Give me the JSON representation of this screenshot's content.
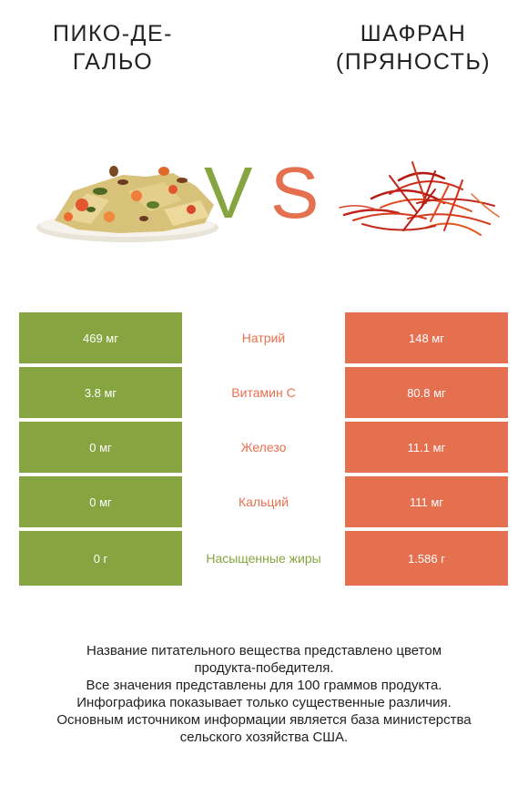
{
  "left_food": {
    "title_line1": "Пико-де-",
    "title_line2": "гальо"
  },
  "right_food": {
    "title_line1": "Шафран",
    "title_line2": "(пряность)"
  },
  "vs": {
    "v": "V",
    "s": "S"
  },
  "colors": {
    "left": "#86a440",
    "right": "#e5704f"
  },
  "rows": [
    {
      "left": "469 мг",
      "nutrient": "Натрий",
      "right": "148 мг",
      "winner": "right"
    },
    {
      "left": "3.8 мг",
      "nutrient": "Витамин C",
      "right": "80.8 мг",
      "winner": "right"
    },
    {
      "left": "0 мг",
      "nutrient": "Железо",
      "right": "11.1 мг",
      "winner": "right"
    },
    {
      "left": "0 мг",
      "nutrient": "Кальций",
      "right": "111 мг",
      "winner": "right"
    },
    {
      "left": "0 г",
      "nutrient": "Насыщенные жиры",
      "right": "1.586 г",
      "winner": "left"
    }
  ],
  "footer": {
    "line1": "Название питательного вещества представлено цветом",
    "line2": "продукта-победителя.",
    "line3": "Все значения представлены для 100 граммов продукта.",
    "line4": "Инфографика показывает только существенные различия.",
    "line5": "Основным источником информации является база министерства",
    "line6": "сельского хозяйства США."
  }
}
